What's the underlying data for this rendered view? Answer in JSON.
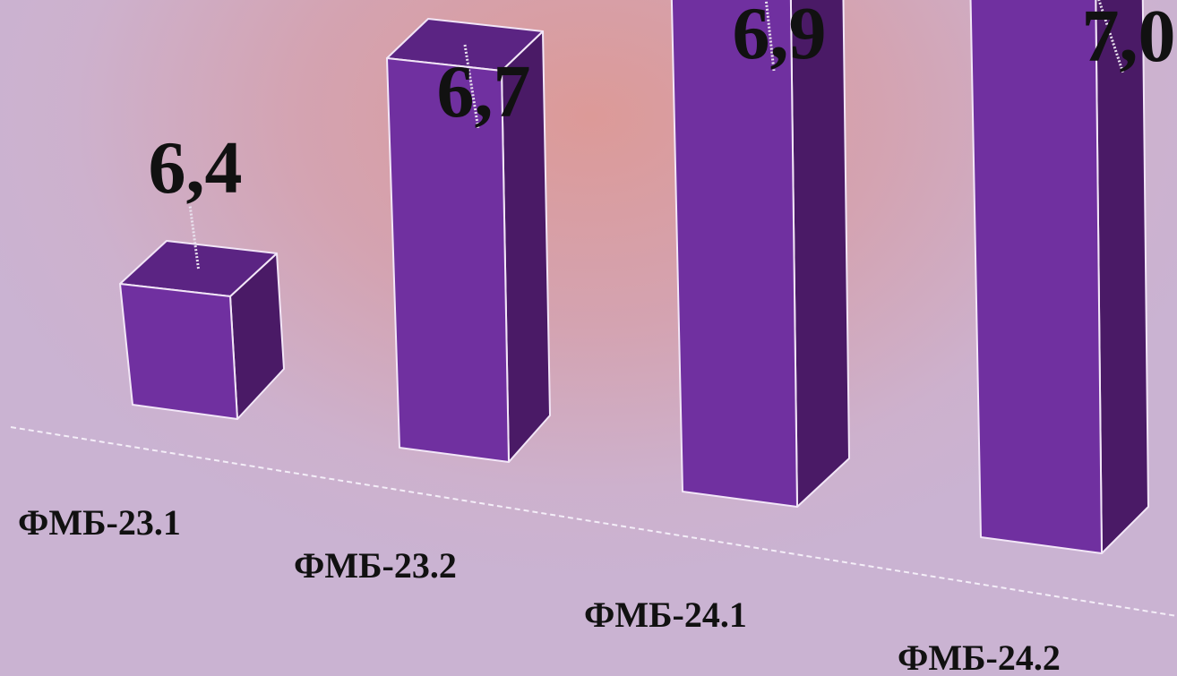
{
  "chart_data": {
    "type": "bar",
    "categories": [
      "ФМБ-23.1",
      "ФМБ-23.2",
      "ФМБ-24.1",
      "ФМБ-24.2"
    ],
    "values": [
      6.4,
      6.7,
      6.9,
      7.0
    ],
    "value_labels": [
      "6,4",
      "6,7",
      "6,9",
      "7,0"
    ],
    "title": "",
    "xlabel": "",
    "ylabel": "",
    "grid": false,
    "legend": "none",
    "colors": {
      "bar_front": "#7030a0",
      "bar_top": "#5b2483",
      "bar_side": "#4a1a66",
      "edge": "#f2e6f7"
    }
  }
}
